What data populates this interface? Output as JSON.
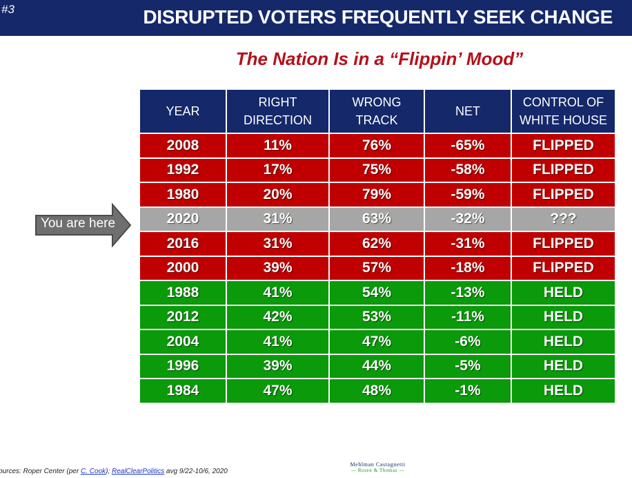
{
  "slide": {
    "number": "#3",
    "title": "DISRUPTED VOTERS FREQUENTLY SEEK CHANGE"
  },
  "subtitle": "The Nation Is in a “Flippin’ Mood”",
  "colors": {
    "header": "#14286a",
    "flipped": "#c00000",
    "current": "#a6a6a6",
    "held": "#0a9a0a",
    "subtitle": "#b4101a"
  },
  "table": {
    "headers": [
      {
        "line1": "YEAR",
        "line2": ""
      },
      {
        "line1": "RIGHT",
        "line2": "DIRECTION"
      },
      {
        "line1": "WRONG",
        "line2": "TRACK"
      },
      {
        "line1": "NET",
        "line2": ""
      },
      {
        "line1": "CONTROL OF",
        "line2": "WHITE HOUSE"
      }
    ],
    "rows": [
      {
        "year": "2008",
        "right": "11%",
        "wrong": "76%",
        "net": "-65%",
        "control": "FLIPPED",
        "status": "flipped"
      },
      {
        "year": "1992",
        "right": "17%",
        "wrong": "75%",
        "net": "-58%",
        "control": "FLIPPED",
        "status": "flipped"
      },
      {
        "year": "1980",
        "right": "20%",
        "wrong": "79%",
        "net": "-59%",
        "control": "FLIPPED",
        "status": "flipped"
      },
      {
        "year": "2020",
        "right": "31%",
        "wrong": "63%",
        "net": "-32%",
        "control": "???",
        "status": "current"
      },
      {
        "year": "2016",
        "right": "31%",
        "wrong": "62%",
        "net": "-31%",
        "control": "FLIPPED",
        "status": "flipped"
      },
      {
        "year": "2000",
        "right": "39%",
        "wrong": "57%",
        "net": "-18%",
        "control": "FLIPPED",
        "status": "flipped"
      },
      {
        "year": "1988",
        "right": "41%",
        "wrong": "54%",
        "net": "-13%",
        "control": "HELD",
        "status": "held"
      },
      {
        "year": "2012",
        "right": "42%",
        "wrong": "53%",
        "net": "-11%",
        "control": "HELD",
        "status": "held"
      },
      {
        "year": "2004",
        "right": "41%",
        "wrong": "47%",
        "net": "-6%",
        "control": "HELD",
        "status": "held"
      },
      {
        "year": "1996",
        "right": "39%",
        "wrong": "44%",
        "net": "-5%",
        "control": "HELD",
        "status": "held"
      },
      {
        "year": "1984",
        "right": "47%",
        "wrong": "48%",
        "net": "-1%",
        "control": "HELD",
        "status": "held"
      }
    ]
  },
  "arrow": {
    "label": "You are here",
    "icon": "right-arrow-icon"
  },
  "sources": {
    "prefix": "ources: Roper Center (per ",
    "link1": "C. Cook",
    "middle": "); ",
    "link2": "RealClearPolitics",
    "suffix": " avg 9/22-10/6, 2020"
  },
  "logo": {
    "line1": "Mehlman Castagnetti",
    "line2": "— Rosen & Thomas —"
  }
}
